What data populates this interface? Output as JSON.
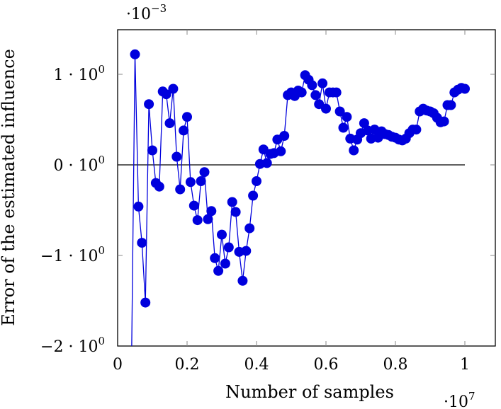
{
  "chart_data": {
    "type": "line",
    "title": "",
    "xlabel": "Number of samples",
    "ylabel": "Error of the estimated influence",
    "x_scale_label": "·10^7",
    "y_scale_label": "·10^-3",
    "xlim": [
      0,
      1.1
    ],
    "ylim": [
      -2,
      1.5
    ],
    "x_ticks": [
      0,
      0.2,
      0.4,
      0.6,
      0.8,
      1
    ],
    "x_tick_labels": [
      "0",
      "0.2",
      "0.4",
      "0.6",
      "0.8",
      "1"
    ],
    "y_ticks": [
      -2,
      -1,
      0,
      1
    ],
    "y_tick_labels": [
      "−2 · 10⁰",
      "−1 · 10⁰",
      "0 · 10⁰",
      "1 · 10⁰"
    ],
    "grid": false,
    "legend": null,
    "reference_line": {
      "y": 0,
      "x_from": 0,
      "x_to": 1,
      "color": "#000000"
    },
    "series": [
      {
        "name": "error",
        "color": "#0000dd",
        "marker": "circle",
        "x": [
          0.04,
          0.05,
          0.06,
          0.07,
          0.08,
          0.09,
          0.1,
          0.11,
          0.12,
          0.13,
          0.14,
          0.15,
          0.16,
          0.17,
          0.18,
          0.19,
          0.2,
          0.21,
          0.22,
          0.23,
          0.24,
          0.25,
          0.26,
          0.27,
          0.28,
          0.29,
          0.3,
          0.31,
          0.32,
          0.33,
          0.34,
          0.35,
          0.36,
          0.37,
          0.38,
          0.39,
          0.4,
          0.41,
          0.42,
          0.43,
          0.44,
          0.45,
          0.46,
          0.47,
          0.48,
          0.49,
          0.5,
          0.51,
          0.52,
          0.53,
          0.54,
          0.55,
          0.56,
          0.57,
          0.58,
          0.59,
          0.6,
          0.61,
          0.62,
          0.63,
          0.64,
          0.65,
          0.66,
          0.67,
          0.68,
          0.69,
          0.7,
          0.71,
          0.72,
          0.73,
          0.74,
          0.75,
          0.76,
          0.77,
          0.78,
          0.79,
          0.8,
          0.81,
          0.82,
          0.83,
          0.84,
          0.85,
          0.86,
          0.87,
          0.88,
          0.89,
          0.9,
          0.91,
          0.92,
          0.93,
          0.94,
          0.95,
          0.96,
          0.97,
          0.98,
          0.99,
          1.0
        ],
        "values": [
          -2.2,
          1.22,
          -0.46,
          -0.86,
          -1.52,
          0.67,
          0.16,
          -0.2,
          -0.24,
          0.81,
          0.78,
          0.46,
          0.84,
          0.09,
          -0.27,
          0.38,
          0.53,
          -0.19,
          -0.45,
          -0.61,
          -0.18,
          -0.08,
          -0.6,
          -0.51,
          -1.03,
          -1.17,
          -0.77,
          -1.09,
          -0.91,
          -0.41,
          -0.52,
          -0.96,
          -1.28,
          -0.95,
          -0.7,
          -0.34,
          -0.18,
          0.01,
          0.17,
          0.02,
          0.12,
          0.13,
          0.28,
          0.15,
          0.32,
          0.77,
          0.8,
          0.76,
          0.82,
          0.8,
          0.99,
          0.94,
          0.88,
          0.77,
          0.67,
          0.9,
          0.62,
          0.8,
          0.8,
          0.8,
          0.59,
          0.41,
          0.53,
          0.29,
          0.16,
          0.28,
          0.35,
          0.46,
          0.38,
          0.29,
          0.39,
          0.3,
          0.37,
          0.34,
          0.33,
          0.31,
          0.3,
          0.28,
          0.27,
          0.29,
          0.35,
          0.39,
          0.39,
          0.59,
          0.62,
          0.6,
          0.59,
          0.57,
          0.52,
          0.47,
          0.48,
          0.66,
          0.66,
          0.8,
          0.83,
          0.85,
          0.84
        ]
      }
    ]
  },
  "labels": {
    "xlabel": "Number of samples",
    "ylabel": "Error of the estimated influence",
    "x_exp_base": "·10",
    "x_exp_power": "7",
    "y_exp_base": "·10",
    "y_exp_power": "−3",
    "x_ticks": [
      "0",
      "0.2",
      "0.4",
      "0.6",
      "0.8",
      "1"
    ],
    "y_ticks": [
      {
        "mant": "1 · 10",
        "exp": "0"
      },
      {
        "mant": "0 · 10",
        "exp": "0"
      },
      {
        "mant": "−1 · 10",
        "exp": "0"
      },
      {
        "mant": "−2 · 10",
        "exp": "0"
      }
    ]
  }
}
